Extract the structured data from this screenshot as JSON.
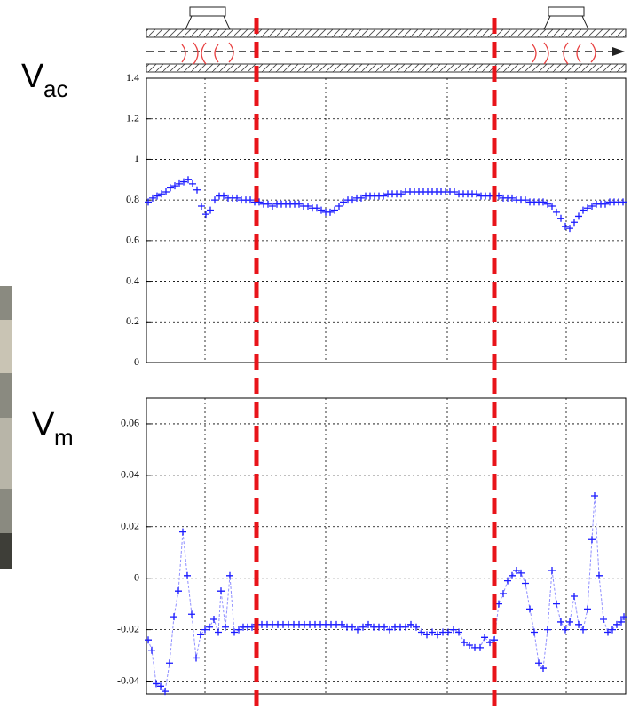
{
  "chart_data": [
    {
      "type": "scatter",
      "ylabel": "V",
      "ylabel_sub": "ac",
      "xlim": [
        0,
        540
      ],
      "xticks": [
        66,
        202,
        339,
        473
      ],
      "ylim": [
        0,
        1.4
      ],
      "yticks": [
        0,
        0.2,
        0.4,
        0.6,
        0.8,
        1,
        1.2,
        1.4
      ],
      "grid": true,
      "vlines": [
        124,
        392
      ],
      "vline_color": "#e8141a",
      "series": [
        {
          "color": "#1a1aff",
          "x": [
            2,
            7,
            12,
            17,
            22,
            27,
            32,
            37,
            42,
            47,
            52,
            57,
            62,
            67,
            72,
            77,
            82,
            87,
            92,
            97,
            102,
            107,
            112,
            117,
            122,
            127,
            132,
            137,
            142,
            147,
            152,
            157,
            162,
            167,
            172,
            177,
            182,
            187,
            192,
            197,
            202,
            207,
            212,
            217,
            222,
            227,
            232,
            237,
            242,
            247,
            252,
            257,
            262,
            267,
            272,
            277,
            282,
            287,
            292,
            297,
            302,
            307,
            312,
            317,
            322,
            327,
            332,
            337,
            342,
            347,
            352,
            357,
            362,
            367,
            372,
            377,
            382,
            387,
            392,
            397,
            402,
            407,
            412,
            417,
            422,
            427,
            432,
            437,
            442,
            447,
            452,
            457,
            462,
            467,
            472,
            477,
            482,
            487,
            492,
            497,
            502,
            507,
            512,
            517,
            522,
            527,
            532,
            537
          ],
          "values": [
            0.79,
            0.81,
            0.82,
            0.83,
            0.84,
            0.86,
            0.87,
            0.88,
            0.89,
            0.9,
            0.88,
            0.85,
            0.77,
            0.73,
            0.75,
            0.8,
            0.82,
            0.82,
            0.81,
            0.81,
            0.81,
            0.8,
            0.8,
            0.8,
            0.79,
            0.79,
            0.78,
            0.78,
            0.77,
            0.78,
            0.78,
            0.78,
            0.78,
            0.78,
            0.78,
            0.77,
            0.77,
            0.76,
            0.76,
            0.75,
            0.74,
            0.74,
            0.75,
            0.77,
            0.79,
            0.8,
            0.8,
            0.81,
            0.81,
            0.82,
            0.82,
            0.82,
            0.82,
            0.82,
            0.83,
            0.83,
            0.83,
            0.83,
            0.84,
            0.84,
            0.84,
            0.84,
            0.84,
            0.84,
            0.84,
            0.84,
            0.84,
            0.84,
            0.84,
            0.84,
            0.83,
            0.83,
            0.83,
            0.83,
            0.83,
            0.82,
            0.82,
            0.82,
            0.82,
            0.82,
            0.81,
            0.81,
            0.81,
            0.8,
            0.8,
            0.8,
            0.79,
            0.79,
            0.79,
            0.79,
            0.78,
            0.77,
            0.74,
            0.71,
            0.67,
            0.66,
            0.69,
            0.72,
            0.75,
            0.76,
            0.77,
            0.78,
            0.78,
            0.78,
            0.79,
            0.79,
            0.79,
            0.79
          ]
        }
      ]
    },
    {
      "type": "line",
      "ylabel": "V",
      "ylabel_sub": "m",
      "xlim": [
        0,
        540
      ],
      "xticks": [
        66,
        202,
        339,
        473
      ],
      "ylim": [
        -0.045,
        0.07
      ],
      "yticks": [
        -0.04,
        -0.02,
        0,
        0.02,
        0.04,
        0.06
      ],
      "grid": true,
      "series": [
        {
          "color": "#1a1aff",
          "line_color": "#8f8fff",
          "x": [
            2,
            6,
            11,
            16,
            21,
            26,
            31,
            36,
            41,
            46,
            51,
            56,
            61,
            66,
            71,
            76,
            81,
            84,
            89,
            94,
            99,
            104,
            109,
            114,
            119,
            124,
            130,
            136,
            142,
            148,
            154,
            160,
            166,
            172,
            178,
            184,
            190,
            196,
            202,
            208,
            214,
            220,
            226,
            232,
            238,
            244,
            250,
            256,
            262,
            268,
            274,
            280,
            286,
            292,
            298,
            304,
            310,
            316,
            322,
            328,
            334,
            340,
            346,
            352,
            358,
            364,
            370,
            376,
            381,
            387,
            392,
            397,
            402,
            407,
            412,
            417,
            422,
            427,
            432,
            437,
            442,
            447,
            452,
            457,
            462,
            467,
            472,
            477,
            482,
            487,
            492,
            497,
            502,
            505,
            510,
            515,
            520,
            525,
            530,
            535,
            538
          ],
          "values": [
            -0.024,
            -0.028,
            -0.041,
            -0.042,
            -0.044,
            -0.033,
            -0.015,
            -0.005,
            0.018,
            0.001,
            -0.014,
            -0.031,
            -0.022,
            -0.02,
            -0.019,
            -0.016,
            -0.021,
            -0.005,
            -0.019,
            0.001,
            -0.021,
            -0.02,
            -0.019,
            -0.019,
            -0.019,
            -0.018,
            -0.018,
            -0.018,
            -0.018,
            -0.018,
            -0.018,
            -0.018,
            -0.018,
            -0.018,
            -0.018,
            -0.018,
            -0.018,
            -0.018,
            -0.018,
            -0.018,
            -0.018,
            -0.018,
            -0.019,
            -0.019,
            -0.02,
            -0.019,
            -0.018,
            -0.019,
            -0.019,
            -0.019,
            -0.02,
            -0.019,
            -0.019,
            -0.019,
            -0.018,
            -0.019,
            -0.021,
            -0.022,
            -0.021,
            -0.022,
            -0.021,
            -0.021,
            -0.02,
            -0.021,
            -0.025,
            -0.026,
            -0.027,
            -0.027,
            -0.023,
            -0.025,
            -0.024,
            -0.01,
            -0.006,
            -0.001,
            0.001,
            0.003,
            0.002,
            -0.002,
            -0.012,
            -0.021,
            -0.033,
            -0.035,
            -0.02,
            0.003,
            -0.01,
            -0.017,
            -0.02,
            -0.017,
            -0.007,
            -0.018,
            -0.02,
            -0.012,
            0.015,
            0.032,
            0.001,
            -0.016,
            -0.021,
            -0.02,
            -0.018,
            -0.017,
            -0.015
          ]
        }
      ]
    }
  ]
}
